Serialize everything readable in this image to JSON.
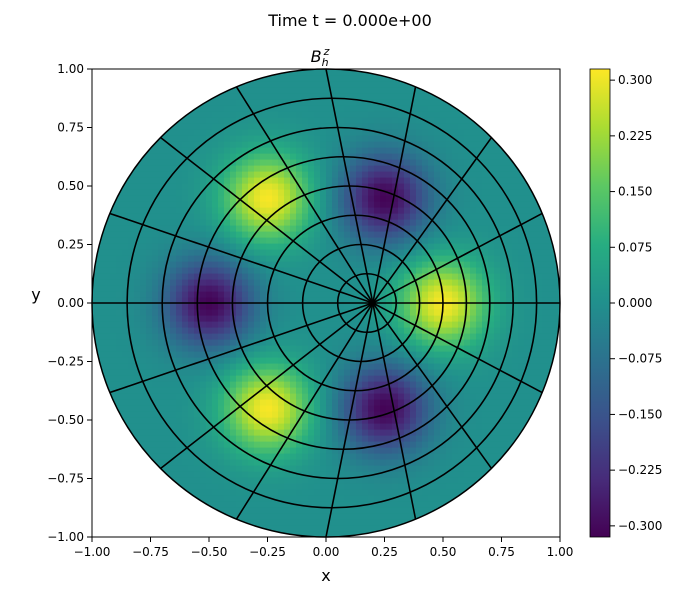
{
  "figure": {
    "suptitle": "Time t =  0.000e+00"
  },
  "chart_data": {
    "type": "heatmap",
    "title": "B_h^z",
    "title_parts": {
      "base": "B",
      "sup": "z",
      "sub": "h"
    },
    "xlabel": "x",
    "ylabel": "y",
    "xlim": [
      -1.0,
      1.0
    ],
    "ylim": [
      -1.0,
      1.0
    ],
    "xticks": [
      "−1.00",
      "−0.75",
      "−0.50",
      "−0.25",
      "0.00",
      "0.25",
      "0.50",
      "0.75",
      "1.00"
    ],
    "yticks": [
      "−1.00",
      "−0.75",
      "−0.50",
      "−0.25",
      "0.00",
      "0.25",
      "0.50",
      "0.75",
      "1.00"
    ],
    "colorbar": {
      "ticks": [
        0.3,
        0.225,
        0.15,
        0.075,
        0.0,
        -0.075,
        -0.15,
        -0.225,
        -0.3
      ],
      "tick_labels": [
        "0.300",
        "0.225",
        "0.150",
        "0.075",
        "0.000",
        "−0.075",
        "−0.150",
        "−0.225",
        "−0.300"
      ],
      "vmin": -0.315,
      "vmax": 0.315,
      "colormap": "viridis"
    },
    "domain": {
      "shape": "disk",
      "center": [
        0.0,
        0.0
      ],
      "radius": 1.0,
      "mesh_center": [
        0.2,
        0.0
      ]
    },
    "field_extrema": [
      {
        "x": 0.5,
        "y": 0.0,
        "value": 0.31
      },
      {
        "x": -0.25,
        "y": 0.45,
        "value": 0.31
      },
      {
        "x": -0.25,
        "y": -0.45,
        "value": 0.31
      },
      {
        "x": -0.5,
        "y": 0.0,
        "value": -0.31
      },
      {
        "x": 0.25,
        "y": 0.45,
        "value": -0.31
      },
      {
        "x": 0.25,
        "y": -0.45,
        "value": -0.31
      }
    ]
  }
}
